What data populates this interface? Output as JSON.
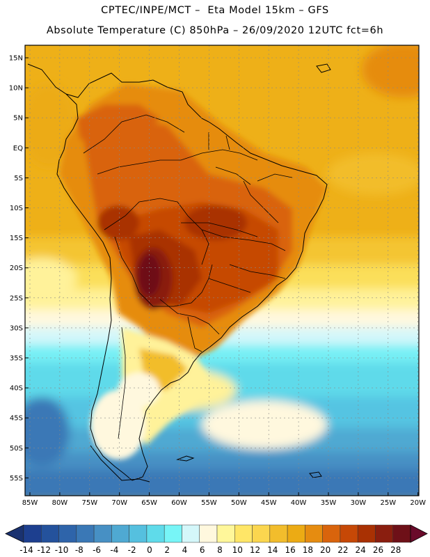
{
  "header": {
    "title_line1": "CPTEC/INPE/MCT –  Eta Model 15km – GFS",
    "title_line2": "Absolute Temperature (C) 850hPa – 26/09/2020 12UTC fct=6h"
  },
  "map": {
    "lat_labels": [
      "15N",
      "10N",
      "5N",
      "EQ",
      "5S",
      "10S",
      "15S",
      "20S",
      "25S",
      "30S",
      "35S",
      "40S",
      "45S",
      "50S",
      "55S"
    ],
    "lon_labels": [
      "85W",
      "80W",
      "75W",
      "70W",
      "65W",
      "60W",
      "55W",
      "50W",
      "45W",
      "40W",
      "35W",
      "30W",
      "25W",
      "20W"
    ]
  },
  "colorbar": {
    "labels": [
      "-14",
      "-12",
      "-10",
      "-8",
      "-6",
      "-4",
      "-2",
      "0",
      "2",
      "4",
      "6",
      "8",
      "10",
      "12",
      "14",
      "16",
      "18",
      "20",
      "22",
      "24",
      "26",
      "28"
    ],
    "colors": [
      "#1d3f8f",
      "#24529c",
      "#2e64aa",
      "#3a78b6",
      "#4790c4",
      "#4fa9d2",
      "#55c0df",
      "#5fdbea",
      "#77f5f7",
      "#d4f7fa",
      "#fff8de",
      "#fff79a",
      "#ffe667",
      "#fbd64f",
      "#f2bd2c",
      "#ecab14",
      "#e68c10",
      "#d9640c",
      "#c64806",
      "#a93103",
      "#8a1e0f",
      "#6e1018"
    ],
    "under_color": "#1a3270",
    "over_color": "#6a0a2a"
  }
}
